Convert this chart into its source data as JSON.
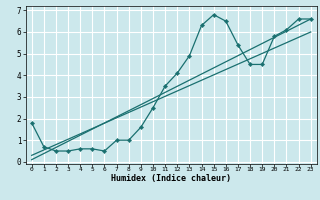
{
  "xlabel": "Humidex (Indice chaleur)",
  "bg_color": "#cce8ec",
  "line_color": "#1a7070",
  "xlim": [
    -0.5,
    23.5
  ],
  "ylim": [
    -0.1,
    7.2
  ],
  "xticks": [
    0,
    1,
    2,
    3,
    4,
    5,
    6,
    7,
    8,
    9,
    10,
    11,
    12,
    13,
    14,
    15,
    16,
    17,
    18,
    19,
    20,
    21,
    22,
    23
  ],
  "yticks": [
    0,
    1,
    2,
    3,
    4,
    5,
    6,
    7
  ],
  "curve_x": [
    0,
    1,
    2,
    3,
    4,
    5,
    6,
    7,
    8,
    9,
    10,
    11,
    12,
    13,
    14,
    15,
    16,
    17,
    18,
    19,
    20,
    21,
    22,
    23
  ],
  "curve_y": [
    1.8,
    0.7,
    0.5,
    0.5,
    0.6,
    0.6,
    0.5,
    1.0,
    1.0,
    1.6,
    2.5,
    3.5,
    4.1,
    4.9,
    6.3,
    6.8,
    6.5,
    5.4,
    4.5,
    4.5,
    5.8,
    6.1,
    6.6,
    6.6
  ],
  "line1_x": [
    0,
    23
  ],
  "line1_y": [
    0.3,
    6.0
  ],
  "line2_x": [
    0,
    23
  ],
  "line2_y": [
    0.1,
    6.6
  ],
  "xlabel_fontsize": 6.0,
  "tick_fontsize_x": 4.5,
  "tick_fontsize_y": 5.5
}
